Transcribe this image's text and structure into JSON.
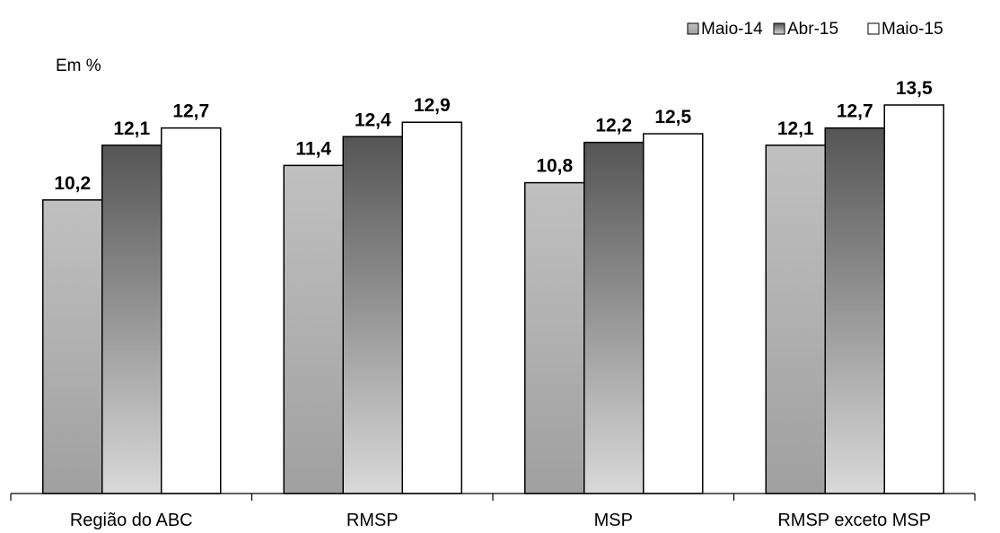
{
  "chart_data": {
    "type": "bar",
    "title": "",
    "unit_label": "Em %",
    "xlabel": "",
    "ylabel": "",
    "categories": [
      "Região do ABC",
      "RMSP",
      "MSP",
      "RMSP exceto MSP"
    ],
    "series": [
      {
        "name": "Maio-14",
        "values": [
          10.2,
          11.4,
          10.8,
          12.1
        ],
        "color": "#c0c0c0",
        "gradient_to": "#a0a0a0",
        "style": "light-gradient"
      },
      {
        "name": "Abr-15",
        "values": [
          12.1,
          12.4,
          12.2,
          12.7
        ],
        "color": "#555555",
        "gradient_to": "#d9d9d9",
        "style": "dark-gradient"
      },
      {
        "name": "Maio-15",
        "values": [
          12.7,
          12.9,
          12.5,
          13.5
        ],
        "color": "#ffffff",
        "gradient_to": "#ffffff",
        "style": "solid"
      }
    ],
    "data_labels": [
      [
        "10,2",
        "11,4",
        "10,8",
        "12,1"
      ],
      [
        "12,1",
        "12,4",
        "12,2",
        "12,7"
      ],
      [
        "12,7",
        "12,9",
        "12,5",
        "13,5"
      ]
    ],
    "ylim": [
      0,
      14
    ],
    "grid": false,
    "legend_position": "top-right",
    "bar_outline_color": "#000000"
  }
}
